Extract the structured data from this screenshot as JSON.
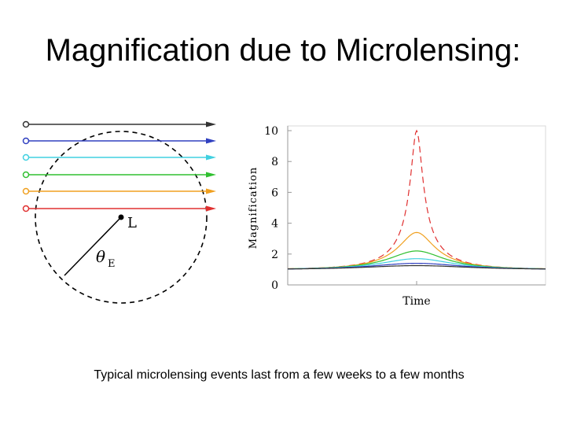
{
  "slide": {
    "title": "Magnification due to Microlensing:",
    "caption": "Typical microlensing events last from a few weeks to a few months"
  },
  "lens_diagram": {
    "lens_label": "L",
    "einstein_radius_symbol": "θ",
    "einstein_radius_subscript": "E",
    "ray_colors": [
      "#333333",
      "#3040c0",
      "#40d0e0",
      "#30c030",
      "#f0a020",
      "#e03030"
    ]
  },
  "chart_data": {
    "type": "line",
    "title": "",
    "xlabel": "Time",
    "ylabel": "Magnification",
    "ylim": [
      0,
      10
    ],
    "yticks": [
      "0",
      "2",
      "4",
      "6",
      "8",
      "10"
    ],
    "x_range": [
      -1,
      1
    ],
    "series": [
      {
        "name": "red",
        "color": "#e03030",
        "dash": "8,5",
        "peak": 10.0
      },
      {
        "name": "orange",
        "color": "#f0a020",
        "dash": "none",
        "peak": 3.4
      },
      {
        "name": "green",
        "color": "#30c030",
        "dash": "none",
        "peak": 2.2
      },
      {
        "name": "cyan",
        "color": "#40d0e0",
        "dash": "none",
        "peak": 1.7
      },
      {
        "name": "blue",
        "color": "#3040c0",
        "dash": "none",
        "peak": 1.4
      },
      {
        "name": "black",
        "color": "#333333",
        "dash": "none",
        "peak": 1.25
      }
    ]
  }
}
